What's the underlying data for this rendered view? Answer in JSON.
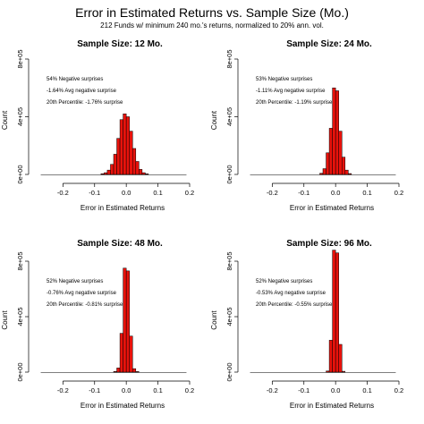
{
  "title": "Error in Estimated Returns vs. Sample Size (Mo.)",
  "subtitle": "212 Funds w/ minimum 240 mo.'s returns, normalized to 20% ann. vol.",
  "chart_data": [
    {
      "type": "histogram",
      "title": "Sample Size: 12 Mo.",
      "xlabel": "Error in Estimated Returns",
      "ylabel": "Count",
      "xlim": [
        -0.28,
        0.2
      ],
      "ylim": [
        0,
        800000
      ],
      "x_ticks": [
        "-0.2",
        "-0.1",
        "0.0",
        "0.1",
        "0.2"
      ],
      "y_ticks": [
        "0e+00",
        "4e+05",
        "8e+05"
      ],
      "bar_color": "#e8120c",
      "bin_width": 0.01,
      "bins_start": [
        -0.08,
        -0.07,
        -0.06,
        -0.05,
        -0.04,
        -0.03,
        -0.02,
        -0.01,
        0.0,
        0.01,
        0.02,
        0.03,
        0.04,
        0.05,
        0.06
      ],
      "counts": [
        5000,
        12000,
        30000,
        70000,
        140000,
        250000,
        380000,
        420000,
        400000,
        300000,
        180000,
        90000,
        35000,
        12000,
        4000
      ],
      "annotations": [
        "54% Negative surprises",
        "-1.64% Avg negative surprise",
        "20th Percentile: -1.76% surprise"
      ]
    },
    {
      "type": "histogram",
      "title": "Sample Size: 24 Mo.",
      "xlabel": "Error in Estimated Returns",
      "ylabel": "Count",
      "xlim": [
        -0.28,
        0.2
      ],
      "ylim": [
        0,
        800000
      ],
      "x_ticks": [
        "-0.2",
        "-0.1",
        "0.0",
        "0.1",
        "0.2"
      ],
      "y_ticks": [
        "0e+00",
        "4e+05",
        "8e+05"
      ],
      "bar_color": "#e8120c",
      "bin_width": 0.01,
      "bins_start": [
        -0.05,
        -0.04,
        -0.03,
        -0.02,
        -0.01,
        0.0,
        0.01,
        0.02,
        0.03,
        0.04
      ],
      "counts": [
        8000,
        40000,
        150000,
        320000,
        600000,
        580000,
        300000,
        120000,
        30000,
        6000
      ],
      "annotations": [
        "53% Negative surprises",
        "-1.11% Avg negative surprise",
        "20th Percentile: -1.19% surprise"
      ]
    },
    {
      "type": "histogram",
      "title": "Sample Size: 48 Mo.",
      "xlabel": "Error in Estimated Returns",
      "ylabel": "Count",
      "xlim": [
        -0.28,
        0.2
      ],
      "ylim": [
        0,
        800000
      ],
      "x_ticks": [
        "-0.2",
        "-0.1",
        "0.0",
        "0.1",
        "0.2"
      ],
      "y_ticks": [
        "0e+00",
        "4e+05",
        "8e+05"
      ],
      "bar_color": "#e8120c",
      "bin_width": 0.01,
      "bins_start": [
        -0.04,
        -0.03,
        -0.02,
        -0.01,
        0.0,
        0.01,
        0.02,
        0.03
      ],
      "counts": [
        5000,
        30000,
        280000,
        750000,
        730000,
        260000,
        25000,
        4000
      ],
      "annotations": [
        "52% Negative surprises",
        "-0.76% Avg negative surprise",
        "20th Percentile: -0.81% surprise"
      ]
    },
    {
      "type": "histogram",
      "title": "Sample Size: 96 Mo.",
      "xlabel": "Error in Estimated Returns",
      "ylabel": "Count",
      "xlim": [
        -0.28,
        0.2
      ],
      "ylim": [
        0,
        800000
      ],
      "x_ticks": [
        "-0.2",
        "-0.1",
        "0.0",
        "0.1",
        "0.2"
      ],
      "y_ticks": [
        "0e+00",
        "4e+05",
        "8e+05"
      ],
      "bar_color": "#e8120c",
      "bin_width": 0.01,
      "bins_start": [
        -0.03,
        -0.02,
        -0.01,
        0.0,
        0.01,
        0.02
      ],
      "counts": [
        8000,
        230000,
        880000,
        860000,
        200000,
        6000
      ],
      "annotations": [
        "52% Negative surprises",
        "-0.53% Avg negative surprise",
        "20th Percentile: -0.55% surprise"
      ]
    }
  ]
}
